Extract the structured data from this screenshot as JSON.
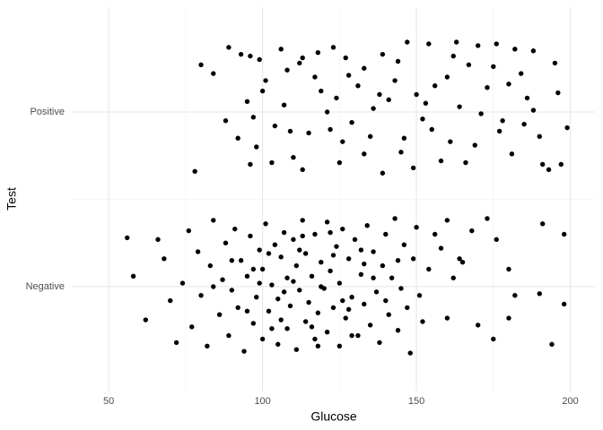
{
  "chart_data": {
    "type": "scatter",
    "x_label": "Glucose",
    "y_label": "Test",
    "x": [
      89,
      96,
      80,
      84,
      78,
      93,
      99,
      106,
      112,
      118,
      123,
      127,
      133,
      139,
      147,
      154,
      163,
      170,
      176,
      182,
      188,
      195,
      167,
      160,
      143,
      131,
      119,
      108,
      101,
      95,
      92,
      88,
      98,
      104,
      110,
      115,
      121,
      126,
      129,
      135,
      141,
      145,
      150,
      155,
      158,
      164,
      169,
      173,
      178,
      181,
      186,
      190,
      193,
      197,
      199,
      196,
      184,
      175,
      149,
      139,
      125,
      113,
      103,
      96,
      117,
      136,
      152,
      161,
      171,
      180,
      188,
      128,
      144,
      107,
      100,
      133,
      156,
      166,
      191,
      122,
      113,
      146,
      177,
      162,
      138,
      124,
      153,
      185,
      97,
      109,
      56,
      58,
      62,
      66,
      68,
      70,
      72,
      74,
      76,
      77,
      79,
      80,
      82,
      83,
      84,
      86,
      87,
      88,
      89,
      90,
      91,
      92,
      93,
      94,
      95,
      96,
      97,
      98,
      99,
      100,
      100,
      101,
      102,
      103,
      104,
      105,
      105,
      106,
      107,
      108,
      108,
      109,
      110,
      111,
      111,
      112,
      113,
      114,
      114,
      115,
      116,
      117,
      117,
      118,
      119,
      120,
      121,
      121,
      122,
      123,
      124,
      125,
      125,
      126,
      127,
      128,
      129,
      130,
      131,
      132,
      133,
      134,
      135,
      136,
      137,
      138,
      139,
      140,
      141,
      142,
      143,
      144,
      145,
      146,
      147,
      148,
      149,
      150,
      151,
      152,
      154,
      156,
      158,
      160,
      162,
      165,
      168,
      170,
      173,
      176,
      180,
      180,
      182,
      190,
      191,
      194,
      198,
      198,
      160,
      164,
      175,
      84,
      90,
      95,
      99,
      102,
      106,
      110,
      113,
      116,
      119,
      122,
      126,
      129,
      132,
      136,
      140,
      144,
      97,
      103,
      107,
      112,
      118,
      123,
      128,
      133
    ],
    "values": [
      2.37,
      2.32,
      2.27,
      2.22,
      1.66,
      2.33,
      2.3,
      2.36,
      2.28,
      2.34,
      2.37,
      2.31,
      2.25,
      2.33,
      2.4,
      2.39,
      2.4,
      2.38,
      2.39,
      2.36,
      2.35,
      2.28,
      2.27,
      2.2,
      2.18,
      2.15,
      2.12,
      2.24,
      2.18,
      2.06,
      1.85,
      1.95,
      1.8,
      1.92,
      1.74,
      1.88,
      2.0,
      1.83,
      1.94,
      1.86,
      2.07,
      1.77,
      2.1,
      1.9,
      1.72,
      2.03,
      1.81,
      2.14,
      1.95,
      1.76,
      2.08,
      1.86,
      1.67,
      1.7,
      1.91,
      2.11,
      2.22,
      2.26,
      1.68,
      1.65,
      1.71,
      1.67,
      1.71,
      1.7,
      2.2,
      2.02,
      1.96,
      1.83,
      1.99,
      2.16,
      2.01,
      2.21,
      2.29,
      2.04,
      2.12,
      1.76,
      2.15,
      1.71,
      1.7,
      1.9,
      2.31,
      1.85,
      1.89,
      2.32,
      2.1,
      2.08,
      2.05,
      1.93,
      1.97,
      1.89,
      1.28,
      1.06,
      0.81,
      1.27,
      1.16,
      0.92,
      0.68,
      1.02,
      1.32,
      0.77,
      1.2,
      0.95,
      0.66,
      1.12,
      1.38,
      0.84,
      1.04,
      1.25,
      0.72,
      0.98,
      1.33,
      0.88,
      1.15,
      0.63,
      1.06,
      1.29,
      0.79,
      0.94,
      1.21,
      0.7,
      1.1,
      1.36,
      0.86,
      1.01,
      1.24,
      0.67,
      0.93,
      1.17,
      1.31,
      0.76,
      1.05,
      0.89,
      1.27,
      0.64,
      1.12,
      0.98,
      1.38,
      0.8,
      1.19,
      0.91,
      1.06,
      0.7,
      1.3,
      0.85,
      1.14,
      0.99,
      1.37,
      0.74,
      1.09,
      0.88,
      1.23,
      0.66,
      1.02,
      1.33,
      0.82,
      1.16,
      0.94,
      1.27,
      0.72,
      1.07,
      0.9,
      1.35,
      0.78,
      1.2,
      0.97,
      0.68,
      1.12,
      1.3,
      0.84,
      1.05,
      1.39,
      0.75,
      0.99,
      1.24,
      0.88,
      0.62,
      1.16,
      1.34,
      0.95,
      0.8,
      1.1,
      1.3,
      1.22,
      1.38,
      1.05,
      1.14,
      1.32,
      0.78,
      1.39,
      1.27,
      1.1,
      0.82,
      0.95,
      0.96,
      1.36,
      0.67,
      0.9,
      1.3,
      0.82,
      1.16,
      0.7,
      1.0,
      1.15,
      0.86,
      1.02,
      1.19,
      0.81,
      1.03,
      1.29,
      0.77,
      1.0,
      1.31,
      0.92,
      0.72,
      1.21,
      1.05,
      0.92,
      1.15,
      1.1,
      0.76,
      0.97,
      1.21,
      0.66,
      1.18,
      0.87,
      1.13
    ],
    "color": "#000000",
    "xlim": [
      38,
      208
    ],
    "xticks": [
      50,
      100,
      150,
      200
    ],
    "xminorticks": [
      75,
      125,
      175
    ],
    "ylim": [
      0.4,
      2.6
    ],
    "yticks": [
      {
        "value": 1,
        "label": "Negative"
      },
      {
        "value": 2,
        "label": "Positive"
      }
    ],
    "yminorticks": [
      1.5
    ],
    "grid": true
  }
}
